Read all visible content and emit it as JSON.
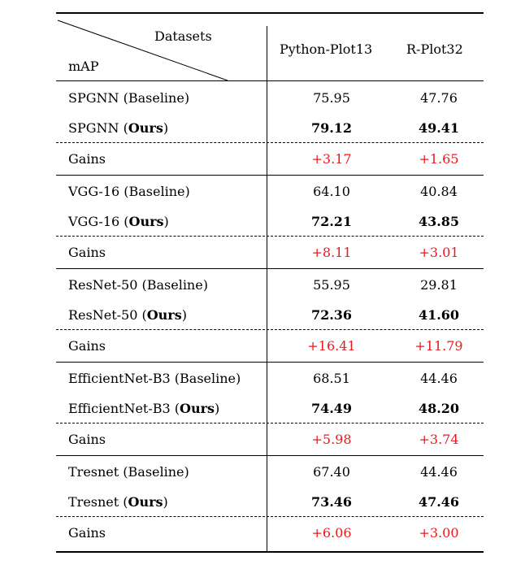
{
  "header": {
    "corner_top": "Datasets",
    "corner_bottom": "mAP",
    "columns": [
      "Python-Plot13",
      "R-Plot32"
    ]
  },
  "groups": [
    {
      "baseline": {
        "label": "SPGNN (Baseline)",
        "values": [
          "75.95",
          "47.76"
        ]
      },
      "ours": {
        "prefix": "SPGNN (",
        "bold": "Ours",
        "suffix": ")",
        "values": [
          "79.12",
          "49.41"
        ]
      },
      "gains": {
        "label": "Gains",
        "values": [
          "+3.17",
          "+1.65"
        ]
      }
    },
    {
      "baseline": {
        "label": "VGG-16 (Baseline)",
        "values": [
          "64.10",
          "40.84"
        ]
      },
      "ours": {
        "prefix": "VGG-16 (",
        "bold": "Ours",
        "suffix": ")",
        "values": [
          "72.21",
          "43.85"
        ]
      },
      "gains": {
        "label": "Gains",
        "values": [
          "+8.11",
          "+3.01"
        ]
      }
    },
    {
      "baseline": {
        "label": "ResNet-50 (Baseline)",
        "values": [
          "55.95",
          "29.81"
        ]
      },
      "ours": {
        "prefix": "ResNet-50 (",
        "bold": "Ours",
        "suffix": ")",
        "values": [
          "72.36",
          "41.60"
        ]
      },
      "gains": {
        "label": "Gains",
        "values": [
          "+16.41",
          "+11.79"
        ]
      }
    },
    {
      "baseline": {
        "label": "EfficientNet-B3 (Baseline)",
        "values": [
          "68.51",
          "44.46"
        ]
      },
      "ours": {
        "prefix": "EfficientNet-B3 (",
        "bold": "Ours",
        "suffix": ")",
        "values": [
          "74.49",
          "48.20"
        ]
      },
      "gains": {
        "label": "Gains",
        "values": [
          "+5.98",
          "+3.74"
        ]
      }
    },
    {
      "baseline": {
        "label": "Tresnet (Baseline)",
        "values": [
          "67.40",
          "44.46"
        ]
      },
      "ours": {
        "prefix": "Tresnet (",
        "bold": "Ours",
        "suffix": ")",
        "values": [
          "73.46",
          "47.46"
        ]
      },
      "gains": {
        "label": "Gains",
        "values": [
          "+6.06",
          "+3.00"
        ]
      }
    }
  ],
  "colors": {
    "gains": "#e8191d"
  }
}
